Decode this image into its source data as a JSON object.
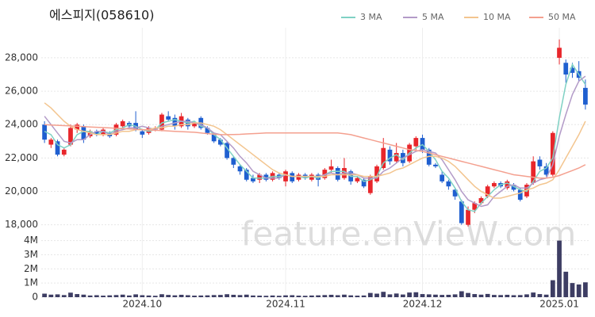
{
  "chart_data": [
    {
      "type": "candlestick",
      "title": "에스피지(058610)",
      "open": [
        24000,
        22800,
        23000,
        22200,
        22800,
        23700,
        23900,
        23300,
        23600,
        23400,
        23500,
        23400,
        23900,
        24100,
        24100,
        23600,
        23500,
        23700,
        23700,
        24500,
        24400,
        23900,
        24300,
        23900,
        24400,
        23800,
        23400,
        23100,
        22900,
        22000,
        21500,
        21300,
        20800,
        20700,
        21000,
        20700,
        21000,
        20600,
        21100,
        20700,
        21000,
        20700,
        21000,
        20800,
        21300,
        21400,
        20800,
        21200,
        20600,
        20700,
        19900,
        20600,
        21400,
        22500,
        21800,
        22300,
        21800,
        22700,
        23200,
        22500,
        21600,
        21000,
        20600,
        20100,
        19400,
        18000,
        18900,
        19300,
        19700,
        20300,
        20500,
        20200,
        20400,
        20100,
        19700,
        20500,
        21900,
        21500,
        21000,
        28000,
        27700,
        27400,
        27200,
        26200
      ],
      "high": [
        24200,
        23200,
        23100,
        22600,
        24000,
        24100,
        24000,
        23700,
        23700,
        23800,
        23600,
        24100,
        24300,
        24200,
        24800,
        23700,
        23900,
        23900,
        24700,
        24800,
        24600,
        24700,
        24400,
        24200,
        24500,
        23900,
        23500,
        23200,
        23000,
        22100,
        21600,
        21400,
        21000,
        21100,
        21100,
        21200,
        21100,
        21300,
        21200,
        21100,
        21100,
        21100,
        21100,
        21400,
        21900,
        21500,
        22000,
        21300,
        20900,
        20800,
        21000,
        21600,
        23200,
        22700,
        22900,
        22500,
        22900,
        23300,
        23400,
        22600,
        21700,
        21200,
        20700,
        20200,
        19500,
        19100,
        19400,
        19700,
        20400,
        20600,
        20600,
        20700,
        20500,
        20200,
        20500,
        22100,
        22100,
        21700,
        23600,
        29100,
        27900,
        27700,
        27800,
        26700
      ],
      "low": [
        22900,
        22600,
        22100,
        22100,
        22700,
        23500,
        22900,
        23200,
        23300,
        23300,
        23200,
        23300,
        23800,
        23800,
        23600,
        23200,
        23400,
        23600,
        23600,
        24200,
        23700,
        23800,
        23700,
        23800,
        23700,
        23400,
        22900,
        22700,
        21900,
        21400,
        21000,
        20600,
        20500,
        20500,
        20600,
        20600,
        20700,
        20300,
        20500,
        20600,
        20700,
        20600,
        20300,
        20700,
        21100,
        20600,
        20700,
        20400,
        20500,
        20200,
        19800,
        20500,
        21300,
        21600,
        21700,
        21500,
        21700,
        22500,
        22300,
        21500,
        21400,
        20500,
        20100,
        19500,
        18000,
        17900,
        18700,
        19200,
        19600,
        20200,
        20200,
        20100,
        20000,
        19400,
        19600,
        20400,
        21300,
        20900,
        20900,
        27600,
        26500,
        26800,
        26600,
        24900
      ],
      "close": [
        23100,
        23100,
        22200,
        22500,
        23800,
        24000,
        23100,
        23600,
        23400,
        23700,
        23300,
        24000,
        24200,
        23900,
        23700,
        23400,
        23800,
        23800,
        24600,
        24300,
        23900,
        24500,
        23900,
        24100,
        23800,
        23500,
        23000,
        22800,
        22000,
        21600,
        21200,
        20700,
        20600,
        21000,
        20700,
        21100,
        20800,
        21200,
        20600,
        21000,
        20800,
        21000,
        20700,
        21300,
        21500,
        20700,
        21400,
        20600,
        20800,
        20300,
        20900,
        21500,
        22600,
        21800,
        22300,
        21700,
        22800,
        23200,
        22500,
        21600,
        21500,
        20600,
        20300,
        19700,
        18100,
        18900,
        19300,
        19600,
        20300,
        20500,
        20300,
        20600,
        20100,
        19500,
        20400,
        21800,
        21500,
        21000,
        23500,
        28600,
        27000,
        27100,
        26800,
        25200
      ],
      "up_color": "#e8262b",
      "down_color": "#1f5fd0",
      "series": [
        {
          "name": "3 MA",
          "color": "#7fd1c4",
          "values": [
            23600,
            23400,
            22800,
            22600,
            22800,
            23400,
            23600,
            23600,
            23400,
            23600,
            23500,
            23700,
            23800,
            24000,
            23900,
            23700,
            23600,
            23700,
            24100,
            24200,
            24300,
            24200,
            24100,
            24200,
            23900,
            23800,
            23400,
            23100,
            22600,
            22100,
            21600,
            21200,
            20800,
            20800,
            20800,
            20900,
            20900,
            21000,
            20900,
            20900,
            20800,
            20900,
            20800,
            21000,
            21200,
            21200,
            21200,
            20900,
            20900,
            20600,
            20700,
            20900,
            21700,
            22000,
            22200,
            21900,
            22300,
            22600,
            22800,
            22400,
            21900,
            21200,
            20800,
            20200,
            19400,
            18900,
            18800,
            19300,
            19700,
            20100,
            20400,
            20500,
            20300,
            20100,
            20000,
            20600,
            21200,
            21400,
            22000,
            24400,
            26400,
            27600,
            27000,
            26400
          ]
        },
        {
          "name": "5 MA",
          "color": "#b39bc8",
          "values": [
            24500,
            24000,
            23500,
            23000,
            22900,
            23100,
            23100,
            23400,
            23600,
            23600,
            23400,
            23600,
            23700,
            23800,
            23800,
            23900,
            23800,
            23700,
            23900,
            24000,
            24100,
            24200,
            24200,
            24100,
            24000,
            23800,
            23500,
            23400,
            23000,
            22600,
            22100,
            21700,
            21200,
            21000,
            20800,
            20800,
            20800,
            21000,
            20900,
            20900,
            20900,
            20900,
            20900,
            21000,
            21100,
            21000,
            21100,
            21100,
            21000,
            20800,
            20800,
            20800,
            21200,
            21400,
            21700,
            22000,
            22200,
            22400,
            22500,
            22400,
            22300,
            21900,
            21300,
            20700,
            20000,
            19500,
            19300,
            19100,
            19200,
            19700,
            20000,
            20300,
            20400,
            20200,
            20200,
            20500,
            20700,
            20800,
            21600,
            23300,
            24600,
            25800,
            26600,
            26900
          ]
        },
        {
          "name": "10 MA",
          "color": "#f3c58f",
          "values": [
            25300,
            25000,
            24600,
            24200,
            23900,
            23700,
            23600,
            23500,
            23400,
            23400,
            23400,
            23500,
            23600,
            23600,
            23700,
            23700,
            23700,
            23800,
            23800,
            23900,
            23900,
            24000,
            24000,
            24100,
            24100,
            24000,
            23900,
            23700,
            23400,
            23100,
            22800,
            22500,
            22200,
            21900,
            21600,
            21300,
            21100,
            21000,
            20900,
            20900,
            20900,
            20900,
            20900,
            20900,
            21000,
            21000,
            21000,
            21000,
            21000,
            20900,
            20900,
            20900,
            21000,
            21100,
            21300,
            21400,
            21600,
            21800,
            22000,
            22100,
            22100,
            22000,
            21800,
            21500,
            21100,
            20700,
            20300,
            20000,
            19800,
            19600,
            19600,
            19700,
            19800,
            19900,
            20100,
            20200,
            20400,
            20500,
            20700,
            21300,
            22000,
            22700,
            23400,
            24200
          ]
        },
        {
          "name": "50 MA",
          "color": "#f4a08f",
          "values": [
            24000,
            23980,
            23960,
            23940,
            23920,
            23900,
            23880,
            23860,
            23840,
            23820,
            23800,
            23780,
            23760,
            23740,
            23720,
            23700,
            23680,
            23660,
            23640,
            23620,
            23600,
            23580,
            23560,
            23540,
            23500,
            23460,
            23430,
            23400,
            23400,
            23410,
            23420,
            23440,
            23460,
            23480,
            23500,
            23500,
            23500,
            23500,
            23500,
            23500,
            23500,
            23500,
            23500,
            23500,
            23500,
            23500,
            23450,
            23400,
            23300,
            23200,
            23100,
            23000,
            22900,
            22800,
            22700,
            22600,
            22500,
            22450,
            22400,
            22300,
            22200,
            22100,
            22000,
            21900,
            21800,
            21700,
            21600,
            21500,
            21400,
            21300,
            21200,
            21100,
            21000,
            20950,
            20900,
            20850,
            20800,
            20800,
            20850,
            20950,
            21100,
            21250,
            21400,
            21600
          ]
        }
      ],
      "ylim": [
        17700,
        29800
      ],
      "yticks": [
        {
          "value": 18000,
          "label": "18,000"
        },
        {
          "value": 20000,
          "label": "20,000"
        },
        {
          "value": 22000,
          "label": "22,000"
        },
        {
          "value": 24000,
          "label": "24,000"
        },
        {
          "value": 26000,
          "label": "26,000"
        },
        {
          "value": 28000,
          "label": "28,000"
        }
      ],
      "grid": true,
      "legend": "top-right",
      "watermark": "feature.enVieW.com"
    },
    {
      "type": "bar",
      "color": "#3d3d63",
      "categories": [
        null,
        null,
        null,
        null,
        null,
        null,
        null,
        null,
        null,
        null,
        null,
        null,
        null,
        null,
        null,
        "2024.10",
        null,
        null,
        null,
        null,
        null,
        null,
        null,
        null,
        null,
        null,
        null,
        null,
        null,
        null,
        null,
        null,
        null,
        null,
        null,
        null,
        null,
        "2024.11",
        null,
        null,
        null,
        null,
        null,
        null,
        null,
        null,
        null,
        null,
        null,
        null,
        null,
        null,
        null,
        null,
        null,
        null,
        null,
        null,
        "2024.12",
        null,
        null,
        null,
        null,
        null,
        null,
        null,
        null,
        null,
        null,
        null,
        null,
        null,
        null,
        null,
        null,
        null,
        null,
        null,
        null,
        "2025.01",
        null,
        null,
        null,
        null
      ],
      "values": [
        250000,
        180000,
        200000,
        150000,
        320000,
        220000,
        180000,
        120000,
        140000,
        110000,
        130000,
        150000,
        180000,
        120000,
        200000,
        140000,
        120000,
        100000,
        210000,
        160000,
        130000,
        170000,
        140000,
        110000,
        120000,
        130000,
        150000,
        160000,
        210000,
        170000,
        150000,
        180000,
        120000,
        110000,
        100000,
        120000,
        100000,
        130000,
        140000,
        110000,
        100000,
        120000,
        130000,
        150000,
        170000,
        140000,
        180000,
        130000,
        110000,
        120000,
        300000,
        250000,
        380000,
        200000,
        260000,
        190000,
        330000,
        350000,
        220000,
        200000,
        180000,
        160000,
        170000,
        200000,
        420000,
        300000,
        220000,
        180000,
        230000,
        160000,
        150000,
        170000,
        140000,
        150000,
        200000,
        330000,
        220000,
        180000,
        1200000,
        4000000,
        1800000,
        1000000,
        900000,
        1050000
      ],
      "ylim": [
        0,
        4200000
      ],
      "yticks": [
        0,
        {
          "value": 1000000,
          "label": "1M"
        },
        {
          "value": 2000000,
          "label": "2M"
        },
        {
          "value": 3000000,
          "label": "3M"
        },
        {
          "value": 4000000,
          "label": "4M"
        }
      ],
      "grid": true
    }
  ]
}
